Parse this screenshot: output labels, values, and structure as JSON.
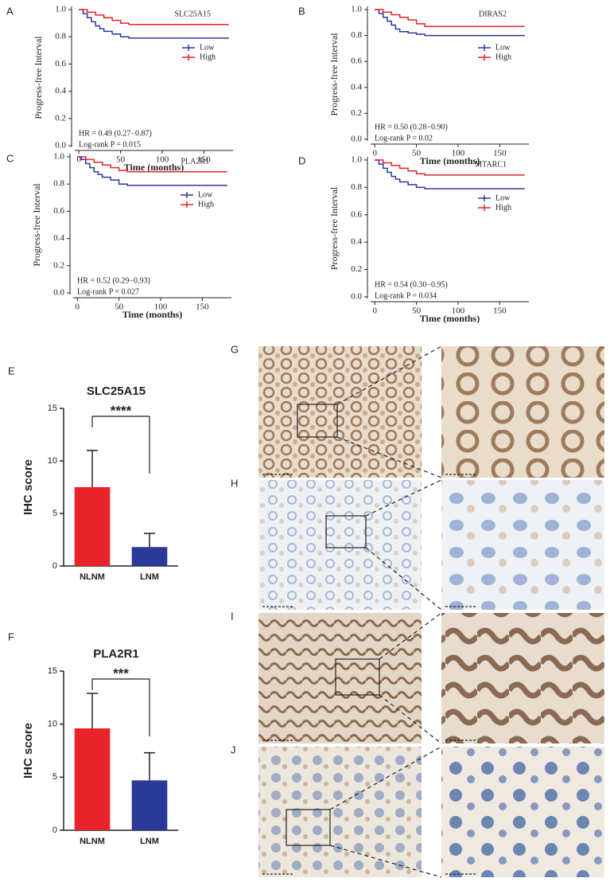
{
  "chart_data": [
    {
      "type": "km",
      "panel": "A",
      "title": "SLC25A15",
      "xlabel": "Time (months)",
      "ylabel": "Progress-free Interval",
      "annotations": [
        "HR = 0.49 (0.27−0.87)",
        "Log-rank P = 0.015"
      ],
      "xlim": [
        -5,
        185
      ],
      "xticks": [
        0,
        50,
        100,
        150
      ],
      "ylim": [
        0,
        1
      ],
      "yticks": [
        {
          "value": 0,
          "label": "0.0"
        },
        0.2,
        0.4,
        0.6,
        0.8,
        {
          "value": 1,
          "label": "1.0"
        }
      ],
      "series": [
        {
          "name": "Low",
          "color": "#2b3a98",
          "x": [
            0,
            5,
            10,
            15,
            20,
            25,
            30,
            40,
            50,
            60,
            70,
            180
          ],
          "values": [
            1,
            0.97,
            0.94,
            0.91,
            0.88,
            0.86,
            0.84,
            0.82,
            0.8,
            0.79,
            0.79,
            0.79
          ]
        },
        {
          "name": "High",
          "color": "#e8232a",
          "x": [
            0,
            10,
            20,
            30,
            40,
            50,
            60,
            180
          ],
          "values": [
            1,
            0.98,
            0.96,
            0.94,
            0.92,
            0.9,
            0.89,
            0.89
          ]
        }
      ]
    },
    {
      "type": "km",
      "panel": "B",
      "title": "DIRAS2",
      "xlabel": "Time (months)",
      "ylabel": "Progress-free Interval",
      "annotations": [
        "HR = 0.50 (0.28−0.90)",
        "Log-rank P = 0.02"
      ],
      "xlim": [
        -5,
        185
      ],
      "xticks": [
        0,
        50,
        100,
        150
      ],
      "ylim": [
        0,
        1
      ],
      "yticks": [
        {
          "value": 0,
          "label": "0.0"
        },
        0.2,
        0.4,
        0.6,
        0.8,
        {
          "value": 1,
          "label": "1.0"
        }
      ],
      "series": [
        {
          "name": "Low",
          "color": "#2b3a98",
          "x": [
            0,
            5,
            10,
            15,
            20,
            25,
            30,
            40,
            50,
            60,
            180
          ],
          "values": [
            1,
            0.97,
            0.94,
            0.91,
            0.88,
            0.85,
            0.83,
            0.82,
            0.81,
            0.8,
            0.8
          ]
        },
        {
          "name": "High",
          "color": "#e8232a",
          "x": [
            0,
            10,
            20,
            30,
            40,
            50,
            60,
            180
          ],
          "values": [
            1,
            0.98,
            0.96,
            0.94,
            0.92,
            0.89,
            0.87,
            0.87
          ]
        }
      ]
    },
    {
      "type": "km",
      "panel": "C",
      "title": "PLA2R1",
      "xlabel": "Time (months)",
      "ylabel": "Progress-free Interval",
      "annotations": [
        "HR = 0.52 (0.29−0.93)",
        "Log-rank P = 0.027"
      ],
      "xlim": [
        -5,
        185
      ],
      "xticks": [
        0,
        50,
        100,
        150
      ],
      "ylim": [
        0,
        1
      ],
      "yticks": [
        {
          "value": 0,
          "label": "0.0"
        },
        0.2,
        0.4,
        0.6,
        0.8,
        {
          "value": 1,
          "label": "1.0"
        }
      ],
      "series": [
        {
          "name": "Low",
          "color": "#2b3a98",
          "x": [
            0,
            5,
            10,
            15,
            20,
            25,
            30,
            40,
            50,
            60,
            180
          ],
          "values": [
            1,
            0.98,
            0.95,
            0.92,
            0.89,
            0.87,
            0.85,
            0.83,
            0.8,
            0.79,
            0.79
          ]
        },
        {
          "name": "High",
          "color": "#e8232a",
          "x": [
            0,
            10,
            20,
            30,
            40,
            50,
            60,
            180
          ],
          "values": [
            1,
            0.98,
            0.96,
            0.94,
            0.92,
            0.9,
            0.89,
            0.89
          ]
        }
      ]
    },
    {
      "type": "km",
      "panel": "D",
      "title": "MTARC1",
      "xlabel": "Time (months)",
      "ylabel": "Progress-free Interval",
      "annotations": [
        "HR = 0.54 (0.30−0.95)",
        "Log-rank P = 0.034"
      ],
      "xlim": [
        -5,
        185
      ],
      "xticks": [
        0,
        50,
        100,
        150
      ],
      "ylim": [
        0,
        1
      ],
      "yticks": [
        {
          "value": 0,
          "label": "0.0"
        },
        0.2,
        0.4,
        0.6,
        0.8,
        {
          "value": 1,
          "label": "1.0"
        }
      ],
      "series": [
        {
          "name": "Low",
          "color": "#2b3a98",
          "x": [
            0,
            5,
            10,
            15,
            20,
            25,
            30,
            40,
            50,
            60,
            180
          ],
          "values": [
            1,
            0.97,
            0.94,
            0.91,
            0.88,
            0.86,
            0.84,
            0.82,
            0.8,
            0.79,
            0.79
          ]
        },
        {
          "name": "High",
          "color": "#e8232a",
          "x": [
            0,
            10,
            20,
            30,
            40,
            50,
            60,
            180
          ],
          "values": [
            1,
            0.98,
            0.96,
            0.94,
            0.92,
            0.9,
            0.89,
            0.89
          ]
        }
      ]
    },
    {
      "type": "bar",
      "panel": "E",
      "title": "SLC25A15",
      "ylabel": "IHC score",
      "significance": "****",
      "categories": [
        "NLNM",
        "LNM"
      ],
      "values": [
        7.5,
        1.8
      ],
      "errors": [
        3.5,
        1.3
      ],
      "colors": [
        "#e8232a",
        "#2b3a98"
      ],
      "ylim": [
        0,
        15
      ],
      "yticks": [
        0,
        5,
        10,
        15
      ]
    },
    {
      "type": "bar",
      "panel": "F",
      "title": "PLA2R1",
      "ylabel": "IHC score",
      "significance": "***",
      "categories": [
        "NLNM",
        "LNM"
      ],
      "values": [
        9.6,
        4.7
      ],
      "errors": [
        3.3,
        2.6
      ],
      "colors": [
        "#e8232a",
        "#2b3a98"
      ],
      "ylim": [
        0,
        15
      ],
      "yticks": [
        0,
        5,
        10,
        15
      ]
    }
  ],
  "image_panels": [
    "G",
    "H",
    "I",
    "J"
  ]
}
